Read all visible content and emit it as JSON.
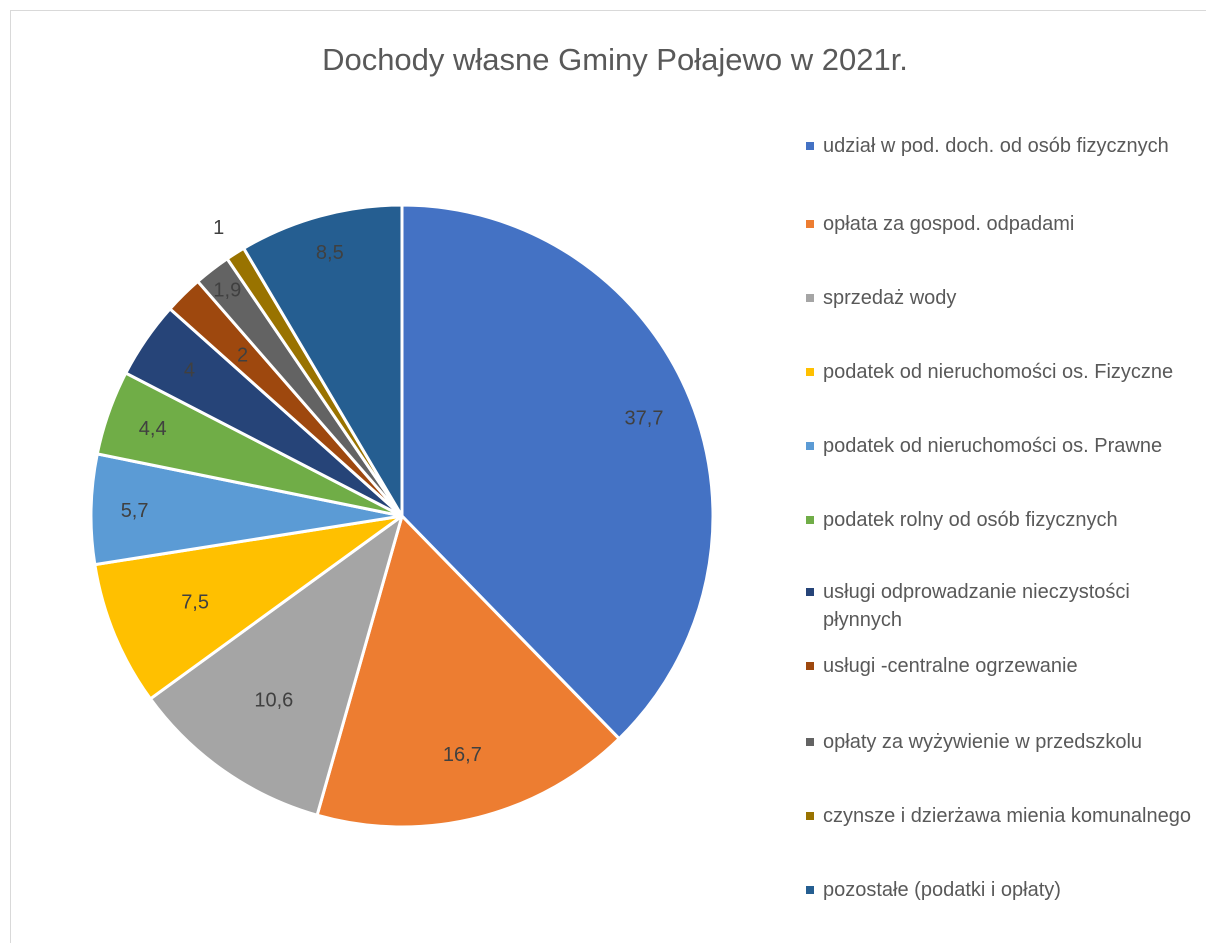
{
  "chart_data": {
    "type": "pie",
    "title": "Dochody własne Gminy Połajewo w 2021r.",
    "legend_position": "right",
    "slices": [
      {
        "label": "udział w pod. doch. od osób fizycznych",
        "value": 37.7,
        "value_label": "37,7",
        "color": "#4472C4"
      },
      {
        "label": "opłata za gospod. odpadami",
        "value": 16.7,
        "value_label": "16,7",
        "color": "#ED7D31"
      },
      {
        "label": "sprzedaż wody",
        "value": 10.6,
        "value_label": "10,6",
        "color": "#A5A5A5"
      },
      {
        "label": "podatek od nieruchomości os. Fizyczne",
        "value": 7.5,
        "value_label": "7,5",
        "color": "#FFC000"
      },
      {
        "label": "podatek od nieruchomości os. Prawne",
        "value": 5.7,
        "value_label": "5,7",
        "color": "#5B9BD5"
      },
      {
        "label": "podatek rolny od osób fizycznych",
        "value": 4.4,
        "value_label": "4,4",
        "color": "#70AD47"
      },
      {
        "label": "usługi odprowadzanie nieczystości płynnych",
        "value": 4,
        "value_label": "4",
        "color": "#264478"
      },
      {
        "label": "usługi -centralne ogrzewanie",
        "value": 2,
        "value_label": "2",
        "color": "#9E480E"
      },
      {
        "label": "opłaty za wyżywienie w przedszkolu",
        "value": 1.9,
        "value_label": "1,9",
        "color": "#636363"
      },
      {
        "label": "czynsze i dzierżawa mienia komunalnego",
        "value": 1,
        "value_label": "1",
        "color": "#997300"
      },
      {
        "label": "pozostałe (podatki i opłaty)",
        "value": 8.5,
        "value_label": "8,5",
        "color": "#255E91"
      }
    ]
  }
}
